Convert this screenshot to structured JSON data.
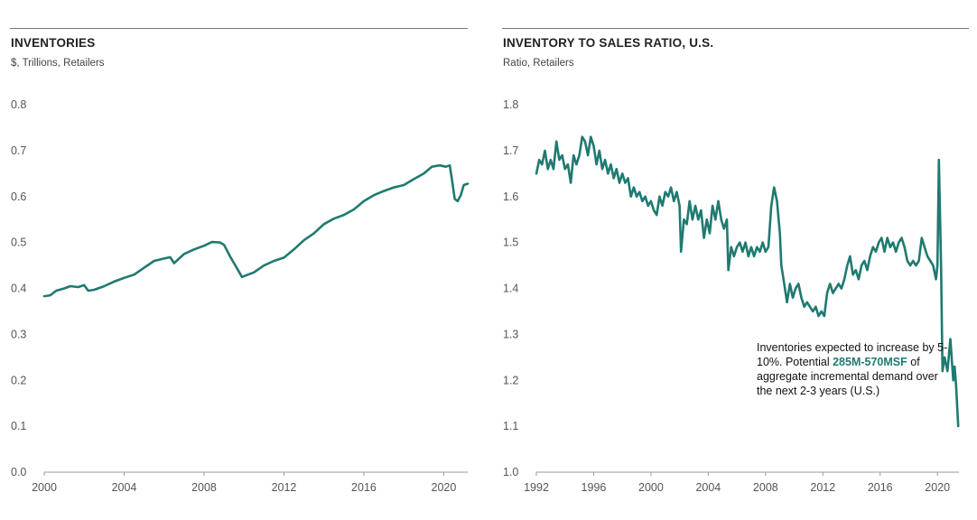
{
  "colors": {
    "line": "#1f7a70",
    "axis": "#999999",
    "text": "#555555"
  },
  "left": {
    "title": "INVENTORIES",
    "subtitle": "$, Trillions, Retailers"
  },
  "right": {
    "title": "INVENTORY TO SALES RATIO, U.S.",
    "subtitle": "Ratio, Retailers",
    "annotation": {
      "part1": "Inventories expected to increase by 5-10%. Potential ",
      "highlight": "285M-570MSF",
      "part2": " of aggregate incremental demand over the next 2-3 years (U.S.)"
    }
  },
  "chart_data": [
    {
      "type": "line",
      "title": "INVENTORIES",
      "ylabel": "$, Trillions, Retailers",
      "xlabel": "",
      "xlim": [
        2000,
        2021.2
      ],
      "ylim": [
        0,
        0.8
      ],
      "xticks": [
        2000,
        2004,
        2008,
        2012,
        2016,
        2020
      ],
      "yticks": [
        0.0,
        0.1,
        0.2,
        0.3,
        0.4,
        0.5,
        0.6,
        0.7,
        0.8
      ],
      "ytick_labels": [
        "0.0",
        "0.1",
        "0.2",
        "0.3",
        "0.4",
        "0.5",
        "0.6",
        "0.7",
        "0.8"
      ],
      "series": [
        {
          "name": "Inventories",
          "points": [
            [
              2000.0,
              0.383
            ],
            [
              2000.3,
              0.385
            ],
            [
              2000.6,
              0.395
            ],
            [
              2001.0,
              0.4
            ],
            [
              2001.3,
              0.405
            ],
            [
              2001.7,
              0.403
            ],
            [
              2002.0,
              0.407
            ],
            [
              2002.2,
              0.395
            ],
            [
              2002.5,
              0.397
            ],
            [
              2003.0,
              0.405
            ],
            [
              2003.5,
              0.415
            ],
            [
              2004.0,
              0.423
            ],
            [
              2004.5,
              0.43
            ],
            [
              2005.0,
              0.445
            ],
            [
              2005.5,
              0.46
            ],
            [
              2006.0,
              0.465
            ],
            [
              2006.3,
              0.468
            ],
            [
              2006.5,
              0.455
            ],
            [
              2007.0,
              0.475
            ],
            [
              2007.5,
              0.485
            ],
            [
              2008.0,
              0.493
            ],
            [
              2008.4,
              0.501
            ],
            [
              2008.8,
              0.5
            ],
            [
              2009.0,
              0.495
            ],
            [
              2009.3,
              0.47
            ],
            [
              2009.7,
              0.44
            ],
            [
              2009.9,
              0.425
            ],
            [
              2010.2,
              0.43
            ],
            [
              2010.5,
              0.435
            ],
            [
              2011.0,
              0.45
            ],
            [
              2011.5,
              0.46
            ],
            [
              2012.0,
              0.467
            ],
            [
              2012.5,
              0.485
            ],
            [
              2013.0,
              0.505
            ],
            [
              2013.5,
              0.52
            ],
            [
              2014.0,
              0.54
            ],
            [
              2014.5,
              0.552
            ],
            [
              2015.0,
              0.56
            ],
            [
              2015.5,
              0.572
            ],
            [
              2016.0,
              0.59
            ],
            [
              2016.5,
              0.603
            ],
            [
              2017.0,
              0.612
            ],
            [
              2017.5,
              0.62
            ],
            [
              2018.0,
              0.625
            ],
            [
              2018.5,
              0.638
            ],
            [
              2019.0,
              0.65
            ],
            [
              2019.4,
              0.665
            ],
            [
              2019.8,
              0.668
            ],
            [
              2020.1,
              0.665
            ],
            [
              2020.3,
              0.668
            ],
            [
              2020.4,
              0.64
            ],
            [
              2020.55,
              0.595
            ],
            [
              2020.7,
              0.59
            ],
            [
              2020.85,
              0.603
            ],
            [
              2021.0,
              0.625
            ],
            [
              2021.2,
              0.628
            ]
          ]
        }
      ]
    },
    {
      "type": "line",
      "title": "INVENTORY TO SALES RATIO, U.S.",
      "ylabel": "Ratio, Retailers",
      "xlabel": "",
      "xlim": [
        1992,
        2021.5
      ],
      "ylim": [
        1.0,
        1.8
      ],
      "xticks": [
        1992,
        1996,
        2000,
        2004,
        2008,
        2012,
        2016,
        2020
      ],
      "yticks": [
        1.0,
        1.1,
        1.2,
        1.3,
        1.4,
        1.5,
        1.6,
        1.7,
        1.8
      ],
      "ytick_labels": [
        "1.0",
        "1.1",
        "1.2",
        "1.3",
        "1.4",
        "1.5",
        "1.6",
        "1.7",
        "1.8"
      ],
      "series": [
        {
          "name": "Inventory to sales ratio",
          "points": [
            [
              1992.0,
              1.65
            ],
            [
              1992.2,
              1.68
            ],
            [
              1992.4,
              1.67
            ],
            [
              1992.6,
              1.7
            ],
            [
              1992.8,
              1.66
            ],
            [
              1993.0,
              1.68
            ],
            [
              1993.2,
              1.66
            ],
            [
              1993.4,
              1.72
            ],
            [
              1993.6,
              1.68
            ],
            [
              1993.8,
              1.69
            ],
            [
              1994.0,
              1.66
            ],
            [
              1994.2,
              1.67
            ],
            [
              1994.4,
              1.63
            ],
            [
              1994.6,
              1.69
            ],
            [
              1994.8,
              1.67
            ],
            [
              1995.0,
              1.69
            ],
            [
              1995.2,
              1.73
            ],
            [
              1995.4,
              1.72
            ],
            [
              1995.6,
              1.69
            ],
            [
              1995.8,
              1.73
            ],
            [
              1996.0,
              1.71
            ],
            [
              1996.2,
              1.67
            ],
            [
              1996.4,
              1.7
            ],
            [
              1996.6,
              1.66
            ],
            [
              1996.8,
              1.68
            ],
            [
              1997.0,
              1.65
            ],
            [
              1997.2,
              1.67
            ],
            [
              1997.4,
              1.64
            ],
            [
              1997.6,
              1.66
            ],
            [
              1997.8,
              1.63
            ],
            [
              1998.0,
              1.65
            ],
            [
              1998.2,
              1.63
            ],
            [
              1998.4,
              1.64
            ],
            [
              1998.6,
              1.6
            ],
            [
              1998.8,
              1.62
            ],
            [
              1999.0,
              1.6
            ],
            [
              1999.2,
              1.61
            ],
            [
              1999.4,
              1.59
            ],
            [
              1999.6,
              1.6
            ],
            [
              1999.8,
              1.58
            ],
            [
              2000.0,
              1.59
            ],
            [
              2000.2,
              1.57
            ],
            [
              2000.4,
              1.56
            ],
            [
              2000.6,
              1.6
            ],
            [
              2000.8,
              1.58
            ],
            [
              2001.0,
              1.61
            ],
            [
              2001.2,
              1.6
            ],
            [
              2001.4,
              1.62
            ],
            [
              2001.6,
              1.59
            ],
            [
              2001.8,
              1.61
            ],
            [
              2002.0,
              1.58
            ],
            [
              2002.1,
              1.48
            ],
            [
              2002.3,
              1.55
            ],
            [
              2002.5,
              1.54
            ],
            [
              2002.7,
              1.59
            ],
            [
              2002.9,
              1.55
            ],
            [
              2003.1,
              1.58
            ],
            [
              2003.3,
              1.55
            ],
            [
              2003.5,
              1.57
            ],
            [
              2003.7,
              1.51
            ],
            [
              2003.9,
              1.55
            ],
            [
              2004.1,
              1.52
            ],
            [
              2004.3,
              1.58
            ],
            [
              2004.5,
              1.55
            ],
            [
              2004.7,
              1.59
            ],
            [
              2004.9,
              1.55
            ],
            [
              2005.1,
              1.53
            ],
            [
              2005.3,
              1.55
            ],
            [
              2005.4,
              1.44
            ],
            [
              2005.6,
              1.49
            ],
            [
              2005.8,
              1.47
            ],
            [
              2006.0,
              1.49
            ],
            [
              2006.2,
              1.5
            ],
            [
              2006.4,
              1.48
            ],
            [
              2006.6,
              1.5
            ],
            [
              2006.8,
              1.47
            ],
            [
              2007.0,
              1.49
            ],
            [
              2007.2,
              1.47
            ],
            [
              2007.4,
              1.49
            ],
            [
              2007.6,
              1.48
            ],
            [
              2007.8,
              1.5
            ],
            [
              2008.0,
              1.48
            ],
            [
              2008.2,
              1.49
            ],
            [
              2008.4,
              1.58
            ],
            [
              2008.6,
              1.62
            ],
            [
              2008.8,
              1.59
            ],
            [
              2009.0,
              1.52
            ],
            [
              2009.1,
              1.45
            ],
            [
              2009.3,
              1.41
            ],
            [
              2009.5,
              1.37
            ],
            [
              2009.7,
              1.41
            ],
            [
              2009.9,
              1.38
            ],
            [
              2010.1,
              1.4
            ],
            [
              2010.3,
              1.41
            ],
            [
              2010.5,
              1.38
            ],
            [
              2010.7,
              1.36
            ],
            [
              2010.9,
              1.37
            ],
            [
              2011.1,
              1.36
            ],
            [
              2011.3,
              1.35
            ],
            [
              2011.5,
              1.36
            ],
            [
              2011.7,
              1.34
            ],
            [
              2011.9,
              1.35
            ],
            [
              2012.1,
              1.34
            ],
            [
              2012.3,
              1.39
            ],
            [
              2012.5,
              1.41
            ],
            [
              2012.7,
              1.39
            ],
            [
              2012.9,
              1.4
            ],
            [
              2013.1,
              1.41
            ],
            [
              2013.3,
              1.4
            ],
            [
              2013.5,
              1.42
            ],
            [
              2013.7,
              1.45
            ],
            [
              2013.9,
              1.47
            ],
            [
              2014.1,
              1.43
            ],
            [
              2014.3,
              1.44
            ],
            [
              2014.5,
              1.42
            ],
            [
              2014.7,
              1.45
            ],
            [
              2014.9,
              1.46
            ],
            [
              2015.1,
              1.44
            ],
            [
              2015.3,
              1.47
            ],
            [
              2015.5,
              1.49
            ],
            [
              2015.7,
              1.48
            ],
            [
              2015.9,
              1.5
            ],
            [
              2016.1,
              1.51
            ],
            [
              2016.3,
              1.48
            ],
            [
              2016.5,
              1.51
            ],
            [
              2016.7,
              1.49
            ],
            [
              2016.9,
              1.5
            ],
            [
              2017.1,
              1.48
            ],
            [
              2017.3,
              1.5
            ],
            [
              2017.5,
              1.51
            ],
            [
              2017.7,
              1.49
            ],
            [
              2017.9,
              1.46
            ],
            [
              2018.1,
              1.45
            ],
            [
              2018.3,
              1.46
            ],
            [
              2018.5,
              1.45
            ],
            [
              2018.7,
              1.46
            ],
            [
              2018.9,
              1.51
            ],
            [
              2019.1,
              1.49
            ],
            [
              2019.3,
              1.47
            ],
            [
              2019.5,
              1.46
            ],
            [
              2019.7,
              1.45
            ],
            [
              2019.9,
              1.42
            ],
            [
              2020.0,
              1.45
            ],
            [
              2020.1,
              1.68
            ],
            [
              2020.25,
              1.45
            ],
            [
              2020.35,
              1.22
            ],
            [
              2020.5,
              1.25
            ],
            [
              2020.7,
              1.22
            ],
            [
              2020.9,
              1.29
            ],
            [
              2021.1,
              1.2
            ],
            [
              2021.2,
              1.23
            ],
            [
              2021.3,
              1.19
            ],
            [
              2021.45,
              1.1
            ]
          ]
        }
      ]
    }
  ]
}
